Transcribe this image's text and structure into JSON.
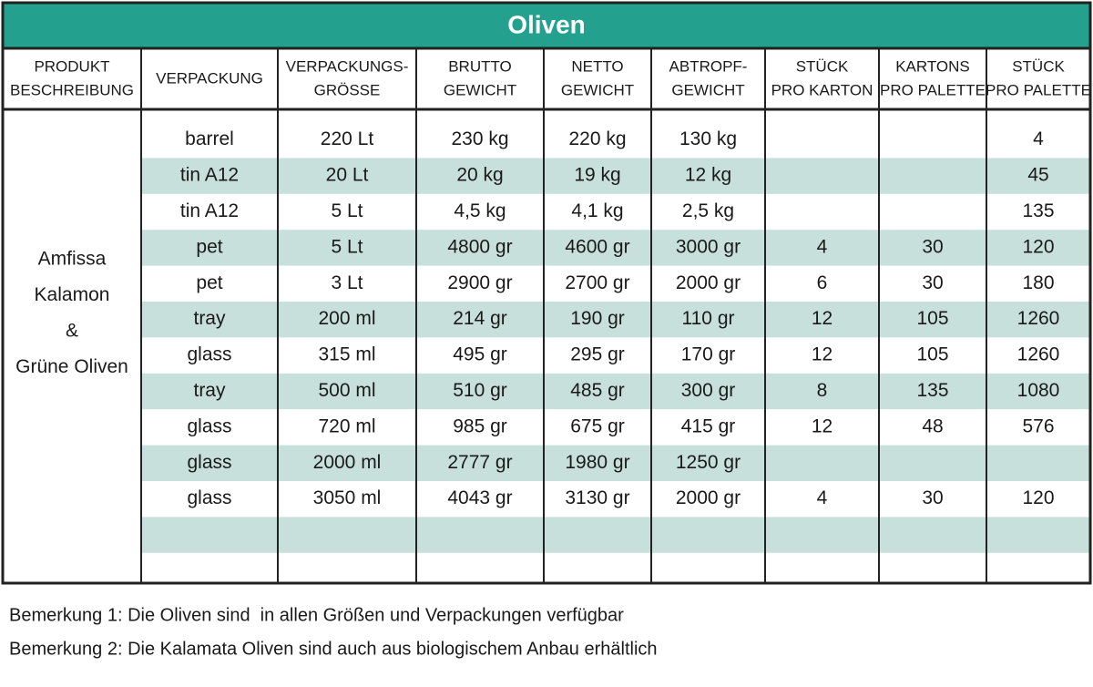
{
  "header": {
    "title": "Oliven"
  },
  "table": {
    "columns": [
      [
        "PRODUKT",
        "BESCHREIBUNG"
      ],
      [
        "VERPACKUNG"
      ],
      [
        "VERPACKUNGS-",
        "GRÖSSE"
      ],
      [
        "BRUTTO",
        "GEWICHT"
      ],
      [
        "NETTO",
        "GEWICHT"
      ],
      [
        "ABTROPF-",
        "GEWICHT"
      ],
      [
        "STÜCK",
        "PRO KARTON"
      ],
      [
        "KARTONS",
        "PRO PALETTE"
      ],
      [
        "STÜCK",
        "PRO PALETTE"
      ]
    ],
    "product": [
      "Amfissa",
      "Kalamon",
      "&",
      "Grüne Oliven"
    ],
    "rows": [
      [
        "barrel",
        "220 Lt",
        "230 kg",
        "220 kg",
        "130 kg",
        null,
        null,
        "4"
      ],
      [
        "tin A12",
        "20 Lt",
        "20 kg",
        "19 kg",
        "12 kg",
        null,
        null,
        "45"
      ],
      [
        "tin A12",
        "5 Lt",
        "4,5 kg",
        "4,1 kg",
        "2,5 kg",
        null,
        null,
        "135"
      ],
      [
        "pet",
        "5 Lt",
        "4800 gr",
        "4600 gr",
        "3000 gr",
        "4",
        "30",
        "120"
      ],
      [
        "pet",
        "3 Lt",
        "2900 gr",
        "2700 gr",
        "2000 gr",
        "6",
        "30",
        "180"
      ],
      [
        "tray",
        "200 ml",
        "214 gr",
        "190 gr",
        "110 gr",
        "12",
        "105",
        "1260"
      ],
      [
        "glass",
        "315 ml",
        "495 gr",
        "295 gr",
        "170 gr",
        "12",
        "105",
        "1260"
      ],
      [
        "tray",
        "500 ml",
        "510 gr",
        "485 gr",
        "300 gr",
        "8",
        "135",
        "1080"
      ],
      [
        "glass",
        "720 ml",
        "985 gr",
        "675 gr",
        "415 gr",
        "12",
        "48",
        "576"
      ],
      [
        "glass",
        "2000 ml",
        "2777 gr",
        "1980 gr",
        "1250 gr",
        null,
        null,
        null
      ],
      [
        "glass",
        "3050 ml",
        "4043 gr",
        "3130 gr",
        "2000 gr",
        "4",
        "30",
        "120"
      ]
    ]
  },
  "notes": [
    "Bemerkung 1: Die Oliven sind  in allen Größen und Verpackungen verfügbar",
    "Bemerkung 2: Die Kalamata Oliven sind auch aus biologischem Anbau erhältlich"
  ]
}
